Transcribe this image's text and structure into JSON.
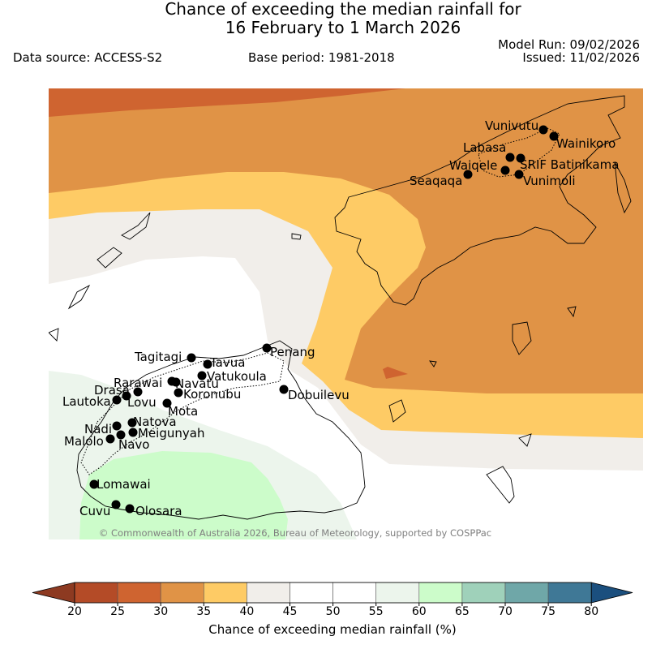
{
  "title": {
    "line1": "Chance of exceeding the median rainfall for",
    "line2": "16 February to 1 March 2026"
  },
  "meta": {
    "data_source": "Data source: ACCESS-S2",
    "base_period": "Base period: 1981-2018",
    "model_run": "Model Run: 09/02/2026",
    "issued": "Issued: 11/02/2026"
  },
  "map": {
    "copyright": "© Commonwealth of Australia 2026, Bureau of Meteorology, supported by COSPPac",
    "stations": [
      {
        "name": "Vunivutu"
      },
      {
        "name": "Wainikoro"
      },
      {
        "name": "Labasa"
      },
      {
        "name": "SRIF Batinikama"
      },
      {
        "name": "Waiqele"
      },
      {
        "name": "Seaqaqa"
      },
      {
        "name": "Vunimoli"
      },
      {
        "name": "Tagitagi"
      },
      {
        "name": "Penang"
      },
      {
        "name": "Tavua"
      },
      {
        "name": "Vatukoula"
      },
      {
        "name": "Rarawai"
      },
      {
        "name": "Navatu"
      },
      {
        "name": "Drasa"
      },
      {
        "name": "Koronubu"
      },
      {
        "name": "Lautoka"
      },
      {
        "name": "Lovu"
      },
      {
        "name": "Mota"
      },
      {
        "name": "Dobuilevu"
      },
      {
        "name": "Natova"
      },
      {
        "name": "Nadi"
      },
      {
        "name": "Meigunyah"
      },
      {
        "name": "Malolo"
      },
      {
        "name": "Navo"
      },
      {
        "name": "Lomawai"
      },
      {
        "name": "Cuvu"
      },
      {
        "name": "Olosara"
      }
    ]
  },
  "colorbar": {
    "title": "Chance of exceeding median rainfall (%)",
    "ticks": [
      "20",
      "25",
      "30",
      "35",
      "40",
      "45",
      "50",
      "55",
      "60",
      "65",
      "70",
      "75",
      "80"
    ],
    "colors": [
      "#b44b27",
      "#cf6430",
      "#e09346",
      "#fecb65",
      "#f1eeea",
      "#ffffff",
      "#ffffff",
      "#ecf5ec",
      "#ccfcca",
      "#9fd1ba",
      "#6fa7a8",
      "#3f7896"
    ],
    "under_color": "#8d3a21",
    "over_color": "#1b4f7e"
  }
}
